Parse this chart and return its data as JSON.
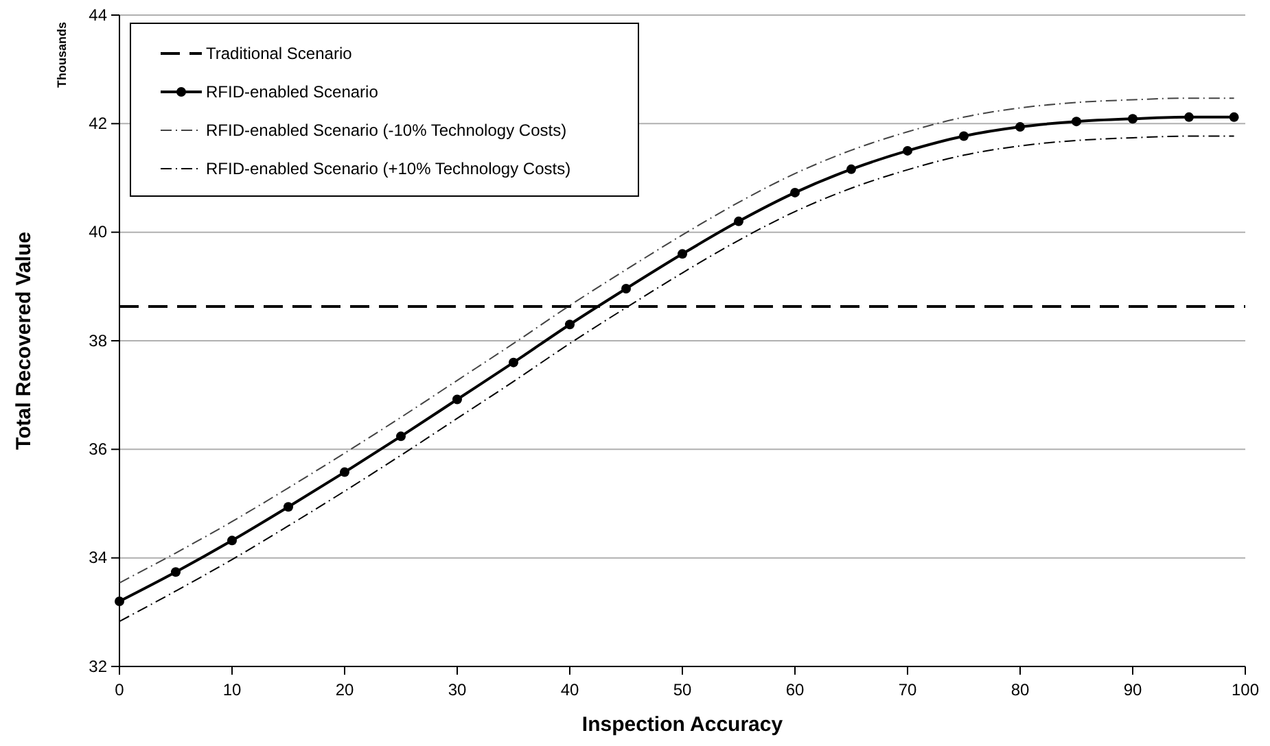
{
  "chart_data": {
    "type": "line",
    "xlabel": "Inspection Accuracy",
    "ylabel": "Total Recovered Value",
    "annotations": [
      "Thousands"
    ],
    "xlim": [
      0,
      100
    ],
    "xticks": [
      0,
      10,
      20,
      30,
      40,
      50,
      60,
      70,
      80,
      90,
      100
    ],
    "ylim": [
      32,
      44
    ],
    "yticks": [
      32,
      34,
      36,
      38,
      40,
      42,
      44
    ],
    "grid": "y",
    "legend": "top left",
    "x": [
      0,
      5,
      10,
      15,
      20,
      25,
      30,
      35,
      40,
      45,
      50,
      55,
      60,
      65,
      70,
      75,
      80,
      85,
      90,
      95,
      99
    ],
    "series": [
      {
        "name": "Traditional Scenario",
        "color": "#000000",
        "x": [
          0,
          100
        ],
        "values": [
          38.63,
          38.63
        ],
        "line_style": "dashed",
        "marker": "none"
      },
      {
        "name": "RFID-enabled Scenario",
        "color": "#000000",
        "values": [
          33.2,
          33.74,
          34.32,
          34.94,
          35.58,
          36.24,
          36.92,
          37.6,
          38.3,
          38.96,
          39.6,
          40.2,
          40.73,
          41.16,
          41.5,
          41.77,
          41.94,
          42.04,
          42.09,
          42.12,
          42.12
        ],
        "line_style": "solid",
        "marker": "circle"
      },
      {
        "name": "RFID-enabled Scenario (-10% Technology Costs)",
        "color": "#444444",
        "values": [
          33.54,
          34.09,
          34.67,
          35.29,
          35.93,
          36.59,
          37.27,
          37.95,
          38.65,
          39.31,
          39.95,
          40.55,
          41.08,
          41.51,
          41.85,
          42.12,
          42.29,
          42.39,
          42.44,
          42.47,
          42.47
        ],
        "line_style": "dashdot",
        "marker": "none"
      },
      {
        "name": "RFID-enabled Scenario (+10% Technology Costs)",
        "color": "#000000",
        "values": [
          32.83,
          33.39,
          33.97,
          34.59,
          35.23,
          35.89,
          36.57,
          37.25,
          37.95,
          38.61,
          39.25,
          39.85,
          40.38,
          40.81,
          41.15,
          41.42,
          41.59,
          41.69,
          41.74,
          41.77,
          41.77
        ],
        "line_style": "dashdot",
        "marker": "none"
      }
    ]
  }
}
